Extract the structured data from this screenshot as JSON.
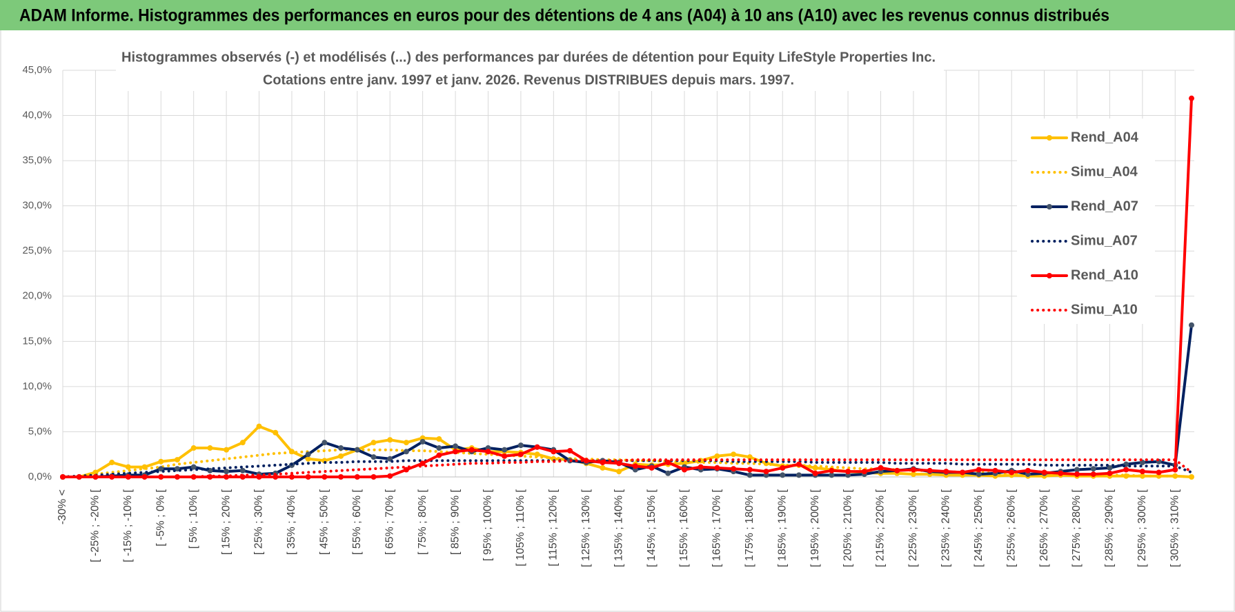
{
  "header": {
    "title": "ADAM Informe. Histogrammes des performances en euros pour des détentions de 4 ans (A04) à 10 ans (A10) avec les revenus connus distribués"
  },
  "chart_data": {
    "type": "line",
    "title": "Histogrammes observés (-) et modélisés (...) des performances par durées de détention pour Equity LifeStyle  Properties Inc.",
    "subtitle": "Cotations entre janv. 1997 et janv. 2026. Revenus DISTRIBUES depuis mars. 1997.",
    "categories": [
      "-30% <",
      null,
      "[ -25% ; -20% [",
      null,
      "[ -15% ; -10% [",
      null,
      "[ -5% ; 0% [",
      null,
      "[ 5% ; 10% [",
      null,
      "[ 15% ; 20% [",
      null,
      "[ 25% ; 30% [",
      null,
      "[ 35% ; 40% [",
      null,
      "[ 45% ; 50% [",
      null,
      "[ 55% ; 60% [",
      null,
      "[ 65% ; 70% [",
      null,
      "[ 75% ; 80% [",
      null,
      "[ 85% ; 90% [",
      null,
      "[ 95% ; 100% [",
      null,
      "[ 105% ; 110% [",
      null,
      "[ 115% ; 120% [",
      null,
      "[ 125% ; 130% [",
      null,
      "[ 135% ; 140% [",
      null,
      "[ 145% ; 150% [",
      null,
      "[ 155% ; 160% [",
      null,
      "[ 165% ; 170% [",
      null,
      "[ 175% ; 180% [",
      null,
      "[ 185% ; 190% [",
      null,
      "[ 195% ; 200% [",
      null,
      "[ 205% ; 210% [",
      null,
      "[ 215% ; 220% [",
      null,
      "[ 225% ; 230% [",
      null,
      "[ 235% ; 240% [",
      null,
      "[ 245% ; 250% [",
      null,
      "[ 255% ; 260% [",
      null,
      "[ 265% ; 270% [",
      null,
      "[ 275% ; 280% [",
      null,
      "[ 285% ; 290% [",
      null,
      "[ 295% ; 300% [",
      null,
      "[ 305% ; 310% [",
      null
    ],
    "series": [
      {
        "name": "Rend_A04",
        "color": "#FFC000",
        "dash": "solid",
        "markers": true,
        "values": [
          0,
          0,
          0.5,
          1.6,
          1.1,
          1.1,
          1.7,
          1.9,
          3.2,
          3.2,
          3.0,
          3.8,
          5.6,
          4.9,
          2.8,
          2.0,
          1.8,
          2.3,
          3.0,
          3.8,
          4.1,
          3.8,
          4.3,
          4.2,
          3.0,
          3.2,
          2.8,
          2.8,
          2.7,
          2.5,
          2.0,
          1.9,
          1.5,
          1.0,
          0.6,
          1.4,
          1.3,
          1.4,
          1.5,
          1.8,
          2.3,
          2.5,
          2.2,
          1.5,
          1.2,
          1.3,
          1.0,
          0.8,
          0.6,
          0.5,
          0.4,
          0.4,
          0.3,
          0.3,
          0.2,
          0.2,
          0.2,
          0.1,
          0.2,
          0.1,
          0.1,
          0.2,
          0.1,
          0.1,
          0.1,
          0.1,
          0.1,
          0.1,
          0.1,
          0
        ]
      },
      {
        "name": "Simu_A04",
        "color": "#FFC000",
        "dash": "dotted",
        "markers": false,
        "values": [
          0,
          0.1,
          0.3,
          0.5,
          0.7,
          0.9,
          1.1,
          1.4,
          1.6,
          1.8,
          2.0,
          2.2,
          2.4,
          2.6,
          2.7,
          2.8,
          2.9,
          3.0,
          3.0,
          3.0,
          3.0,
          2.9,
          2.9,
          2.8,
          2.7,
          2.6,
          2.5,
          2.4,
          2.3,
          2.2,
          2.1,
          2.0,
          2.0,
          1.9,
          1.9,
          1.8,
          1.8,
          1.7,
          1.7,
          1.6,
          1.6,
          1.5,
          1.5,
          1.4,
          1.3,
          1.3,
          1.2,
          1.1,
          1.0,
          0.9,
          0.9,
          0.8,
          0.7,
          0.7,
          0.6,
          0.5,
          0.5,
          0.4,
          0.4,
          0.3,
          0.3,
          0.3,
          0.2,
          0.2,
          0.2,
          0.2,
          0.1,
          0.1,
          0.1,
          0
        ]
      },
      {
        "name": "Rend_A07",
        "color": "#002060",
        "dash": "solid",
        "markers": true,
        "values": [
          0,
          0,
          0,
          0.1,
          0.2,
          0.2,
          0.9,
          0.9,
          1.1,
          0.7,
          0.6,
          0.7,
          0.3,
          0.4,
          1.3,
          2.5,
          3.8,
          3.2,
          3.0,
          2.2,
          2.0,
          2.8,
          3.9,
          3.2,
          3.4,
          2.8,
          3.2,
          3.0,
          3.5,
          3.3,
          3.0,
          1.8,
          1.6,
          1.8,
          1.6,
          0.8,
          1.2,
          0.4,
          1.1,
          0.8,
          0.9,
          0.6,
          0.2,
          0.2,
          0.2,
          0.2,
          0.2,
          0.2,
          0.2,
          0.3,
          0.6,
          0.7,
          0.9,
          0.6,
          0.5,
          0.5,
          0.3,
          0.4,
          0.7,
          0.3,
          0.4,
          0.6,
          0.8,
          0.9,
          1.0,
          1.4,
          1.6,
          1.7,
          1.3,
          16.8
        ]
      },
      {
        "name": "Simu_A07",
        "color": "#002060",
        "dash": "dotted",
        "markers": false,
        "values": [
          0,
          0.1,
          0.2,
          0.3,
          0.4,
          0.5,
          0.6,
          0.7,
          0.8,
          0.9,
          1.0,
          1.1,
          1.2,
          1.3,
          1.4,
          1.5,
          1.6,
          1.6,
          1.7,
          1.7,
          1.7,
          1.8,
          1.8,
          1.8,
          1.8,
          1.8,
          1.8,
          1.8,
          1.8,
          1.8,
          1.8,
          1.8,
          1.8,
          1.8,
          1.8,
          1.8,
          1.8,
          1.8,
          1.8,
          1.8,
          1.8,
          1.7,
          1.7,
          1.7,
          1.7,
          1.7,
          1.6,
          1.6,
          1.6,
          1.6,
          1.6,
          1.5,
          1.5,
          1.5,
          1.5,
          1.4,
          1.4,
          1.4,
          1.4,
          1.4,
          1.3,
          1.3,
          1.3,
          1.3,
          1.3,
          1.2,
          1.2,
          1.2,
          1.2,
          0.5
        ]
      },
      {
        "name": "Rend_A10",
        "color": "#FF0000",
        "dash": "solid",
        "markers": true,
        "values": [
          0,
          0,
          0,
          0,
          0,
          0,
          0,
          0,
          0,
          0,
          0,
          0,
          0,
          0,
          0,
          0,
          0,
          0,
          0,
          0,
          0.1,
          0.8,
          1.5,
          2.4,
          2.8,
          3.0,
          2.8,
          2.3,
          2.5,
          3.3,
          2.8,
          2.9,
          1.8,
          1.6,
          1.5,
          1.2,
          1.0,
          1.6,
          0.8,
          1.1,
          1.0,
          0.9,
          0.8,
          0.6,
          1.0,
          1.4,
          0.4,
          0.7,
          0.6,
          0.6,
          1.0,
          0.7,
          0.8,
          0.7,
          0.6,
          0.5,
          0.8,
          0.7,
          0.5,
          0.7,
          0.5,
          0.4,
          0.3,
          0.3,
          0.4,
          0.8,
          0.6,
          0.5,
          0.8,
          41.9
        ]
      },
      {
        "name": "Simu_A10",
        "color": "#FF0000",
        "dash": "dotted",
        "markers": false,
        "values": [
          0,
          0,
          0,
          0,
          0,
          0,
          0,
          0,
          0,
          0.1,
          0.1,
          0.2,
          0.2,
          0.3,
          0.4,
          0.5,
          0.6,
          0.7,
          0.8,
          0.9,
          1.0,
          1.1,
          1.2,
          1.3,
          1.4,
          1.5,
          1.5,
          1.6,
          1.6,
          1.7,
          1.7,
          1.8,
          1.8,
          1.8,
          1.8,
          1.9,
          1.9,
          1.9,
          1.9,
          1.9,
          1.9,
          1.9,
          1.9,
          1.9,
          1.9,
          1.9,
          1.9,
          1.9,
          1.9,
          1.9,
          1.9,
          1.9,
          1.9,
          1.9,
          1.9,
          1.9,
          1.9,
          1.9,
          1.9,
          1.9,
          1.9,
          1.9,
          1.9,
          1.9,
          1.9,
          1.9,
          1.9,
          1.9,
          1.9,
          0.5
        ]
      }
    ],
    "ylim": [
      0,
      45
    ],
    "yticks": [
      {
        "value": 0,
        "label": "0,0%"
      },
      {
        "value": 5,
        "label": "5,0%"
      },
      {
        "value": 10,
        "label": "10,0%"
      },
      {
        "value": 15,
        "label": "15,0%"
      },
      {
        "value": 20,
        "label": "20,0%"
      },
      {
        "value": 25,
        "label": "25,0%"
      },
      {
        "value": 30,
        "label": "30,0%"
      },
      {
        "value": 35,
        "label": "35,0%"
      },
      {
        "value": 40,
        "label": "40,0%"
      },
      {
        "value": 45,
        "label": "45,0%"
      }
    ],
    "grid": true,
    "legend": "right"
  }
}
